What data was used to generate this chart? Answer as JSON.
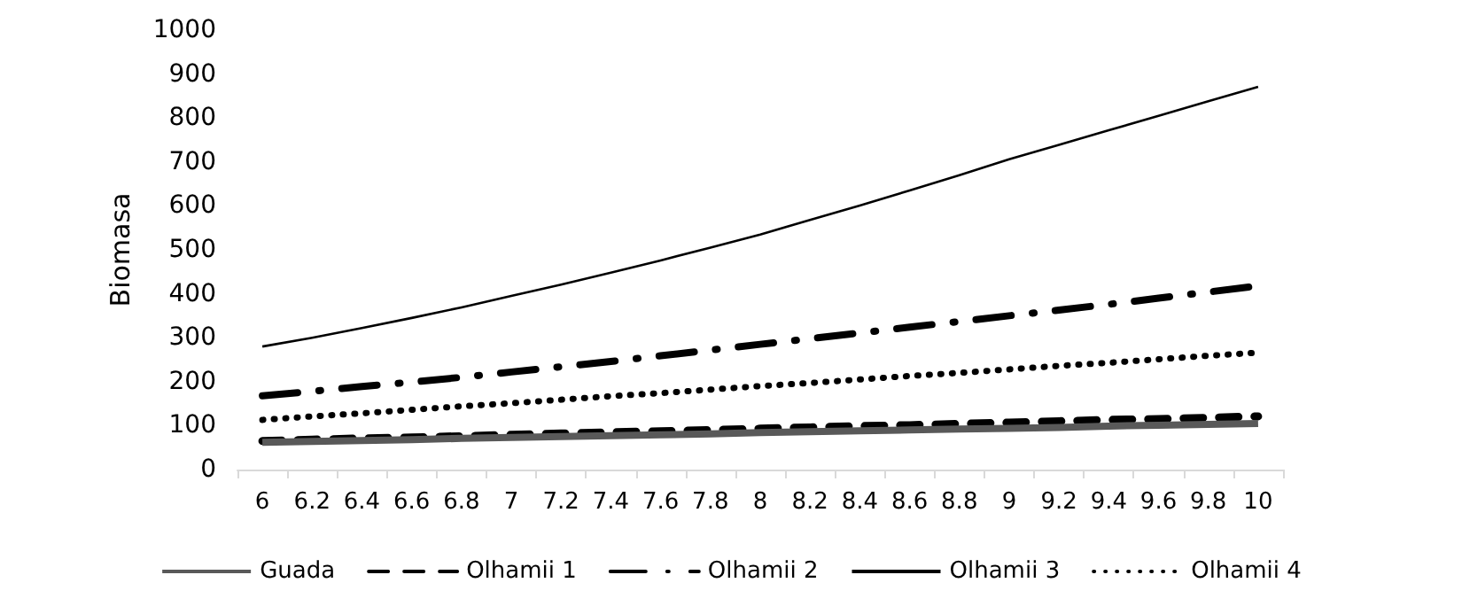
{
  "chart_data": {
    "type": "line",
    "ylabel": "Biomasa",
    "categories": [
      "6",
      "6.2",
      "6.4",
      "6.6",
      "6.8",
      "7",
      "7.2",
      "7.4",
      "7.6",
      "7.8",
      "8",
      "8.2",
      "8.4",
      "8.6",
      "8.8",
      "9",
      "9.2",
      "9.4",
      "9.6",
      "9.8",
      "10"
    ],
    "ylim": [
      0,
      1000
    ],
    "yticks": [
      0,
      100,
      200,
      300,
      400,
      500,
      600,
      700,
      800,
      900,
      1000
    ],
    "grid": false,
    "legend": "bottom",
    "marker": "none",
    "series": [
      {
        "name": "Guada",
        "color": "#595959",
        "line_style": "solid",
        "values": [
          62,
          64,
          66,
          68,
          71,
          73,
          75,
          77,
          79,
          81,
          84,
          86,
          88,
          90,
          92,
          94,
          96,
          99,
          101,
          103,
          105
        ]
      },
      {
        "name": "Olhamii 1",
        "color": "#000000",
        "line_style": "dashed",
        "values": [
          65,
          68,
          71,
          73,
          76,
          79,
          82,
          85,
          87,
          90,
          93,
          96,
          99,
          101,
          104,
          107,
          110,
          113,
          115,
          118,
          121
        ]
      },
      {
        "name": "Olhamii 2",
        "color": "#000000",
        "line_style": "dashdot",
        "values": [
          168,
          178,
          189,
          199,
          210,
          222,
          234,
          246,
          259,
          272,
          285,
          298,
          311,
          324,
          337,
          350,
          363,
          376,
          390,
          404,
          418
        ]
      },
      {
        "name": "Olhamii 3",
        "color": "#000000",
        "line_style": "solid",
        "values": [
          280,
          300,
          322,
          345,
          369,
          395,
          421,
          448,
          476,
          505,
          535,
          568,
          601,
          635,
          670,
          706,
          739,
          772,
          805,
          838,
          871
        ]
      },
      {
        "name": "Olhamii 4",
        "color": "#000000",
        "line_style": "dotted",
        "values": [
          113,
          121,
          128,
          136,
          144,
          151,
          159,
          167,
          174,
          182,
          190,
          197,
          205,
          213,
          220,
          228,
          236,
          243,
          251,
          259,
          266
        ]
      }
    ]
  }
}
